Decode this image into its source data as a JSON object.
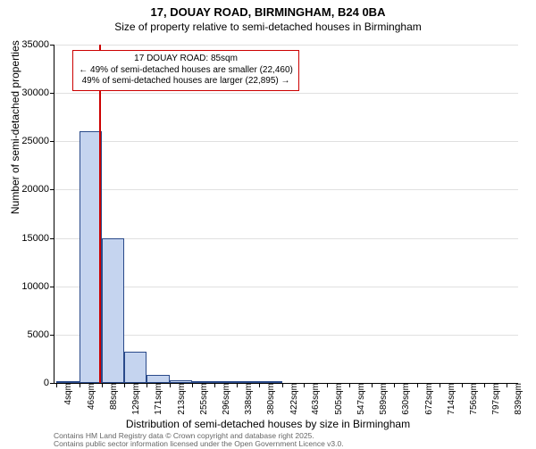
{
  "titles": {
    "line1": "17, DOUAY ROAD, BIRMINGHAM, B24 0BA",
    "line2": "Size of property relative to semi-detached houses in Birmingham"
  },
  "ylabel": "Number of semi-detached properties",
  "xlabel": "Distribution of semi-detached houses by size in Birmingham",
  "chart": {
    "type": "histogram",
    "background_color": "#ffffff",
    "grid_color": "#e0e0e0",
    "axis_color": "#000000",
    "bar_fill": "#c5d4ef",
    "bar_stroke": "#2a4a8a",
    "refline_color": "#cc0000",
    "annotation_border": "#cc0000",
    "text_color": "#000000",
    "footer_color": "#666666",
    "ylim": [
      0,
      35000
    ],
    "ytick_step": 5000,
    "yticks": [
      0,
      5000,
      10000,
      15000,
      20000,
      25000,
      30000,
      35000
    ],
    "xlim": [
      0,
      860
    ],
    "xticks": [
      4,
      46,
      88,
      129,
      171,
      213,
      255,
      296,
      338,
      380,
      422,
      463,
      505,
      547,
      589,
      630,
      672,
      714,
      756,
      797,
      839
    ],
    "xtick_labels": [
      "4sqm",
      "46sqm",
      "88sqm",
      "129sqm",
      "171sqm",
      "213sqm",
      "255sqm",
      "296sqm",
      "338sqm",
      "380sqm",
      "422sqm",
      "463sqm",
      "505sqm",
      "547sqm",
      "589sqm",
      "630sqm",
      "672sqm",
      "714sqm",
      "756sqm",
      "797sqm",
      "839sqm"
    ],
    "bars": [
      {
        "x0": 4,
        "x1": 46,
        "value": 150
      },
      {
        "x0": 46,
        "x1": 88,
        "value": 26000
      },
      {
        "x0": 88,
        "x1": 129,
        "value": 15000
      },
      {
        "x0": 129,
        "x1": 171,
        "value": 3200
      },
      {
        "x0": 171,
        "x1": 213,
        "value": 800
      },
      {
        "x0": 213,
        "x1": 255,
        "value": 250
      },
      {
        "x0": 255,
        "x1": 296,
        "value": 120
      },
      {
        "x0": 296,
        "x1": 338,
        "value": 60
      },
      {
        "x0": 338,
        "x1": 380,
        "value": 30
      },
      {
        "x0": 380,
        "x1": 422,
        "value": 20
      }
    ],
    "reference_line_x": 85,
    "title_fontsize": 13,
    "subtitle_fontsize": 12,
    "label_fontsize": 12,
    "tick_fontsize": 11,
    "xtick_fontsize": 10
  },
  "annotation": {
    "line1": "17 DOUAY ROAD: 85sqm",
    "line2": "← 49% of semi-detached houses are smaller (22,460)",
    "line3": "49% of semi-detached houses are larger (22,895) →"
  },
  "footer": {
    "line1": "Contains HM Land Registry data © Crown copyright and database right 2025.",
    "line2": "Contains public sector information licensed under the Open Government Licence v3.0."
  }
}
